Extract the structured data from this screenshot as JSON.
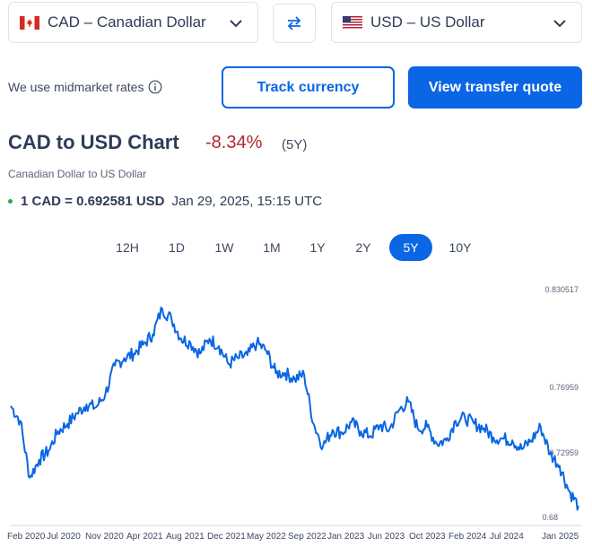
{
  "from_currency": {
    "code": "CAD",
    "name": "Canadian Dollar"
  },
  "to_currency": {
    "code": "USD",
    "name": "US Dollar"
  },
  "midmarket_text": "We use midmarket rates",
  "buttons": {
    "track": "Track currency",
    "quote": "View transfer quote"
  },
  "chart_header": {
    "title": "CAD to USD Chart",
    "change": "-8.34%",
    "period": "(5Y)",
    "subtitle": "Canadian Dollar to US Dollar"
  },
  "rate": {
    "value": "1 CAD = 0.692581 USD",
    "timestamp": "Jan 29, 2025, 15:15 UTC"
  },
  "range_tabs": [
    "12H",
    "1D",
    "1W",
    "1M",
    "1Y",
    "2Y",
    "5Y",
    "10Y"
  ],
  "active_range": "5Y",
  "colors": {
    "accent": "#0a66e4",
    "negative": "#b3262f",
    "live_dot": "#2ea84b"
  },
  "chart_data": {
    "type": "line",
    "yticks": [
      "0.830517",
      "0.76959",
      "0.72959",
      "0.68"
    ],
    "ylim": [
      0.68,
      0.83
    ],
    "xticks": [
      "Feb 2020",
      "Jul 2020",
      "Nov 2020",
      "Apr 2021",
      "Aug 2021",
      "Dec 2021",
      "May 2022",
      "Sep 2022",
      "Jan 2023",
      "Jun 2023",
      "Oct 2023",
      "Feb 2024",
      "Jul 2024",
      "Jan 2025"
    ],
    "x": [
      "2020-01",
      "2020-02",
      "2020-03",
      "2020-04",
      "2020-05",
      "2020-06",
      "2020-07",
      "2020-08",
      "2020-09",
      "2020-10",
      "2020-11",
      "2020-12",
      "2021-01",
      "2021-02",
      "2021-03",
      "2021-04",
      "2021-05",
      "2021-06",
      "2021-07",
      "2021-08",
      "2021-09",
      "2021-10",
      "2021-11",
      "2021-12",
      "2022-01",
      "2022-02",
      "2022-03",
      "2022-04",
      "2022-05",
      "2022-06",
      "2022-07",
      "2022-08",
      "2022-09",
      "2022-10",
      "2022-11",
      "2022-12",
      "2023-01",
      "2023-02",
      "2023-03",
      "2023-04",
      "2023-05",
      "2023-06",
      "2023-07",
      "2023-08",
      "2023-09",
      "2023-10",
      "2023-11",
      "2023-12",
      "2024-01",
      "2024-02",
      "2024-03",
      "2024-04",
      "2024-05",
      "2024-06",
      "2024-07",
      "2024-08",
      "2024-09",
      "2024-10",
      "2024-11",
      "2024-12",
      "2025-01"
    ],
    "series": [
      {
        "values": [
          0.754,
          0.744,
          0.706,
          0.718,
          0.724,
          0.737,
          0.742,
          0.749,
          0.755,
          0.753,
          0.762,
          0.781,
          0.786,
          0.789,
          0.795,
          0.802,
          0.819,
          0.812,
          0.799,
          0.796,
          0.789,
          0.799,
          0.794,
          0.782,
          0.786,
          0.788,
          0.796,
          0.791,
          0.776,
          0.776,
          0.772,
          0.775,
          0.742,
          0.727,
          0.738,
          0.736,
          0.743,
          0.737,
          0.734,
          0.741,
          0.738,
          0.751,
          0.757,
          0.739,
          0.74,
          0.729,
          0.731,
          0.744,
          0.746,
          0.742,
          0.739,
          0.733,
          0.732,
          0.731,
          0.725,
          0.731,
          0.74,
          0.722,
          0.714,
          0.697,
          0.687
        ]
      }
    ]
  }
}
